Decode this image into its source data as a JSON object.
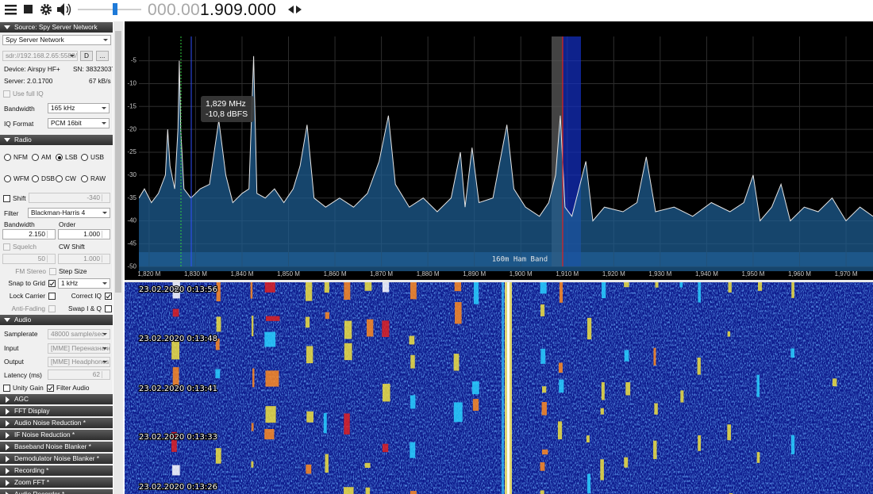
{
  "toolbar": {
    "frequency_dim": "000.00",
    "frequency": "1.909.000"
  },
  "source": {
    "header": "Source: Spy Server Network",
    "source_type": "Spy Server Network",
    "uri": "sdr://192.168.2.65:5588/",
    "connect_button": "D",
    "more_button": "...",
    "device": "Device: Airspy HF+",
    "serial": "SN: 38323037",
    "server": "Server: 2.0.1700",
    "rate": "67 kB/s",
    "use_full_iq": {
      "label": "Use full IQ",
      "checked": false
    },
    "bandwidth_label": "Bandwidth",
    "bandwidth": "165 kHz",
    "iq_format_label": "IQ Format",
    "iq_format": "PCM 16bit"
  },
  "radio": {
    "header": "Radio",
    "modes": [
      {
        "label": "NFM",
        "selected": false
      },
      {
        "label": "AM",
        "selected": false
      },
      {
        "label": "LSB",
        "selected": true
      },
      {
        "label": "USB",
        "selected": false
      },
      {
        "label": "WFM",
        "selected": false
      },
      {
        "label": "DSB",
        "selected": false
      },
      {
        "label": "CW",
        "selected": false
      },
      {
        "label": "RAW",
        "selected": false
      }
    ],
    "shift": {
      "label": "Shift",
      "checked": false,
      "value": "-340"
    },
    "filter_label": "Filter",
    "filter": "Blackman-Harris 4",
    "bandwidth_label": "Bandwidth",
    "order_label": "Order",
    "bandwidth": "2.150",
    "order": "1.000",
    "squelch": {
      "label": "Squelch",
      "checked": false,
      "value": "50"
    },
    "cw_shift_label": "CW Shift",
    "cw_shift": "1.000",
    "fm_stereo": {
      "label": "FM Stereo",
      "checked": false
    },
    "step_size_label": "Step Size",
    "snap_to_grid": {
      "label": "Snap to Grid",
      "checked": true
    },
    "step_size": "1 kHz",
    "lock_carrier": {
      "label": "Lock Carrier",
      "checked": false
    },
    "correct_iq": {
      "label": "Correct IQ",
      "checked": true
    },
    "anti_fading": {
      "label": "Anti-Fading",
      "checked": false
    },
    "swap_iq": {
      "label": "Swap I & Q",
      "checked": false
    }
  },
  "audio": {
    "header": "Audio",
    "samplerate_label": "Samplerate",
    "samplerate": "48000 sample/sec",
    "input_label": "Input",
    "input": "[MME] Переназначе",
    "output_label": "Output",
    "output": "[MME] Headphones (I",
    "latency_label": "Latency (ms)",
    "latency": "62",
    "unity_gain": {
      "label": "Unity Gain",
      "checked": false
    },
    "filter_audio": {
      "label": "Filter Audio",
      "checked": true
    }
  },
  "collapsed_panels": [
    "AGC",
    "FFT Display",
    "Audio Noise Reduction *",
    "IF Noise Reduction *",
    "Baseband Noise Blanker *",
    "Demodulator Noise Blanker *",
    "Recording *",
    "Zoom FFT *",
    "Audio Recorder *"
  ],
  "spectrum": {
    "ylim": [
      -51,
      1
    ],
    "yticks": [
      -5,
      -10,
      -15,
      -20,
      -25,
      -30,
      -35,
      -40,
      -45,
      -50
    ],
    "xlim": [
      1.8178,
      1.9758
    ],
    "xticks": [
      {
        "value": 1.82,
        "label": "1,820 M"
      },
      {
        "value": 1.83,
        "label": "1,830 M"
      },
      {
        "value": 1.84,
        "label": "1,840 M"
      },
      {
        "value": 1.85,
        "label": "1,850 M"
      },
      {
        "value": 1.86,
        "label": "1,860 M"
      },
      {
        "value": 1.87,
        "label": "1,870 M"
      },
      {
        "value": 1.88,
        "label": "1,880 M"
      },
      {
        "value": 1.89,
        "label": "1,890 M"
      },
      {
        "value": 1.9,
        "label": "1,900 M"
      },
      {
        "value": 1.91,
        "label": "1,910 M"
      },
      {
        "value": 1.92,
        "label": "1,920 M"
      },
      {
        "value": 1.93,
        "label": "1,930 M"
      },
      {
        "value": 1.94,
        "label": "1,940 M"
      },
      {
        "value": 1.95,
        "label": "1,950 M"
      },
      {
        "value": 1.96,
        "label": "1,960 M"
      },
      {
        "value": 1.97,
        "label": "1,970 M"
      }
    ],
    "trace": {
      "x": [
        1.8178,
        1.819,
        1.8205,
        1.822,
        1.8235,
        1.824,
        1.8245,
        1.8255,
        1.8262,
        1.8265,
        1.8268,
        1.8275,
        1.829,
        1.831,
        1.833,
        1.835,
        1.8365,
        1.838,
        1.84,
        1.8415,
        1.8425,
        1.8432,
        1.845,
        1.847,
        1.849,
        1.851,
        1.8525,
        1.854,
        1.8555,
        1.858,
        1.861,
        1.864,
        1.867,
        1.8695,
        1.8715,
        1.873,
        1.876,
        1.879,
        1.882,
        1.885,
        1.887,
        1.888,
        1.8895,
        1.891,
        1.894,
        1.897,
        1.8985,
        1.901,
        1.904,
        1.906,
        1.9075,
        1.9085,
        1.9095,
        1.911,
        1.9125,
        1.914,
        1.9155,
        1.918,
        1.922,
        1.925,
        1.927,
        1.929,
        1.933,
        1.937,
        1.941,
        1.945,
        1.948,
        1.95,
        1.9515,
        1.954,
        1.956,
        1.958,
        1.961,
        1.964,
        1.967,
        1.97,
        1.973,
        1.9758
      ],
      "y": [
        -35,
        -33,
        -36,
        -34,
        -30,
        -20,
        -28,
        -33,
        -20,
        -5,
        -20,
        -33,
        -35,
        -33,
        -32,
        -18,
        -30,
        -36,
        -34,
        -33,
        -4,
        -34,
        -35,
        -33,
        -36,
        -33,
        -28,
        -19,
        -35,
        -37,
        -35,
        -37,
        -34,
        -27,
        -17,
        -32,
        -37,
        -35,
        -38,
        -35,
        -25,
        -37,
        -24,
        -36,
        -35,
        -19,
        -33,
        -37,
        -39,
        -36,
        -30,
        -17,
        -37,
        -39,
        -33,
        -27,
        -40,
        -37,
        -38,
        -36,
        -26,
        -38,
        -37,
        -39,
        -36,
        -38,
        -36,
        -30,
        -40,
        -37,
        -32,
        -40,
        -37,
        -38,
        -35,
        -40,
        -37,
        -39
      ]
    },
    "tooltip": [
      "1,829 MHz",
      "-10,8 dBFS"
    ],
    "band_label": "160m Ham Band"
  },
  "waterfall": {
    "timestamps": [
      "23.02.2020 0:13:56",
      "23.02.2020 0:13:48",
      "23.02.2020 0:13:41",
      "23.02.2020 0:13:33",
      "23.02.2020 0:13:26"
    ]
  }
}
